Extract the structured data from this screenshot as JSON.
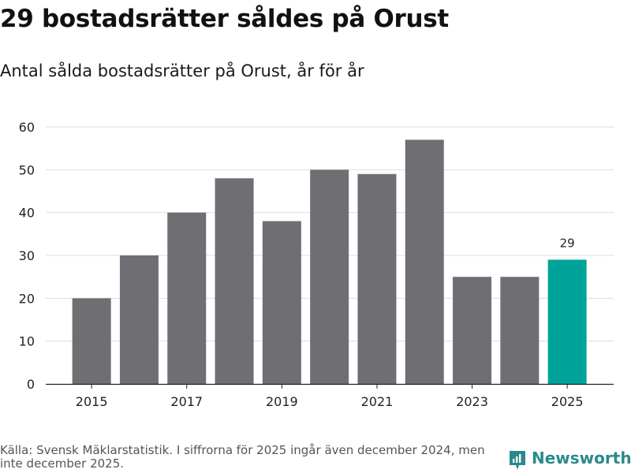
{
  "chart_data": {
    "type": "bar",
    "title": "29 bostadsrätter såldes på Orust",
    "subtitle": "Antal sålda bostadsrätter på Orust, år för år",
    "categories": [
      "2015",
      "2016",
      "2017",
      "2018",
      "2019",
      "2020",
      "2021",
      "2022",
      "2023",
      "2024",
      "2025"
    ],
    "values": [
      20,
      30,
      40,
      48,
      38,
      50,
      49,
      57,
      25,
      25,
      29
    ],
    "x_tick_labels": [
      "2015",
      "2017",
      "2019",
      "2021",
      "2023",
      "2025"
    ],
    "y_ticks": [
      0,
      10,
      20,
      30,
      40,
      50,
      60
    ],
    "ylim": [
      0,
      60
    ],
    "xlabel": "",
    "ylabel": "",
    "grid": true,
    "data_labels": [
      {
        "category": "2025",
        "text": "29"
      }
    ],
    "highlight_category": "2025",
    "colors": {
      "bar": "#6f6e73",
      "highlight": "#00a39a",
      "grid": "#dddddd",
      "axis": "#222222"
    }
  },
  "footer": {
    "source": "Källa: Svensk Mäklarstatistik. I siffrorna för 2025 ingår även december 2024, men inte december 2025.",
    "brand": "Newsworthy",
    "brand_icon": "bar-chart-logo-icon",
    "brand_color": "#2a8a8a"
  }
}
